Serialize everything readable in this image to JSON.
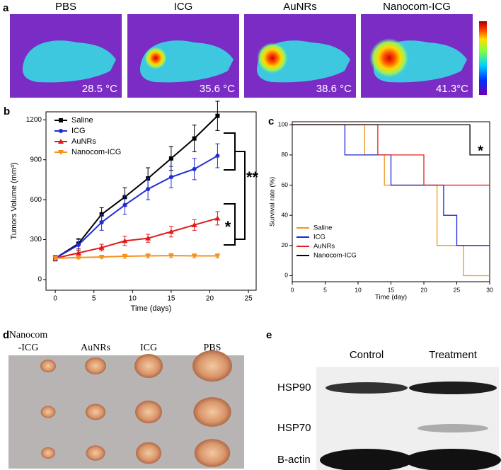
{
  "panel_a": {
    "label": "a",
    "images": [
      {
        "title": "PBS",
        "temperature": "28.5 °C"
      },
      {
        "title": "ICG",
        "temperature": "35.6 °C"
      },
      {
        "title": "AuNRs",
        "temperature": "38.6 °C"
      },
      {
        "title": "Nanocom-ICG",
        "temperature": "41.3°C"
      }
    ]
  },
  "chart_data": [
    {
      "type": "line",
      "panel_label": "b",
      "x_label": "Time (days)",
      "y_label": "Tumors Volume (mm³)",
      "x": [
        0,
        3,
        6,
        9,
        12,
        15,
        18,
        21
      ],
      "series": [
        {
          "name": "Saline",
          "color": "#000000",
          "marker": "square",
          "values": [
            160,
            270,
            490,
            620,
            760,
            910,
            1060,
            1230
          ],
          "errors": [
            20,
            40,
            50,
            70,
            80,
            90,
            100,
            110
          ]
        },
        {
          "name": "ICG",
          "color": "#1f2bd6",
          "marker": "circle",
          "values": [
            160,
            260,
            430,
            560,
            680,
            770,
            830,
            930
          ],
          "errors": [
            20,
            40,
            60,
            70,
            80,
            80,
            80,
            90
          ]
        },
        {
          "name": "AuNRs",
          "color": "#e01b1b",
          "marker": "triangle-up",
          "values": [
            160,
            200,
            240,
            290,
            310,
            360,
            410,
            460
          ],
          "errors": [
            15,
            20,
            25,
            35,
            30,
            40,
            40,
            50
          ]
        },
        {
          "name": "Nanocom-ICG",
          "color": "#f5921e",
          "marker": "triangle-down",
          "values": [
            160,
            165,
            170,
            175,
            178,
            180,
            178,
            178
          ],
          "errors": [
            10,
            10,
            10,
            15,
            15,
            15,
            15,
            15
          ]
        }
      ],
      "xlim": [
        -1.2,
        26
      ],
      "ylim": [
        -80,
        1260
      ],
      "xticks": [
        0,
        5,
        10,
        15,
        20,
        25
      ],
      "yticks": [
        0,
        300,
        600,
        900,
        1200
      ],
      "annotations": [
        "**",
        "*"
      ]
    },
    {
      "type": "step",
      "panel_label": "c",
      "x_label": "Time (day)",
      "y_label": "Survival rate (%)",
      "series": [
        {
          "name": "Saline",
          "color": "#f0961e",
          "x": [
            0,
            11,
            14,
            22,
            26,
            30
          ],
          "values": [
            100,
            80,
            60,
            20,
            0,
            0
          ]
        },
        {
          "name": "ICG",
          "color": "#1a26d6",
          "x": [
            0,
            8,
            15,
            23,
            25,
            30
          ],
          "values": [
            100,
            80,
            60,
            40,
            20,
            20
          ]
        },
        {
          "name": "AuNRs",
          "color": "#e6221e",
          "x": [
            0,
            13,
            20,
            30
          ],
          "values": [
            100,
            80,
            60,
            60
          ]
        },
        {
          "name": "Nanocom-ICG",
          "color": "#000000",
          "x": [
            0,
            27,
            30
          ],
          "values": [
            100,
            80,
            80
          ]
        }
      ],
      "xlim": [
        0,
        30
      ],
      "ylim": [
        -4,
        102
      ],
      "xticks": [
        0,
        5,
        10,
        15,
        20,
        25,
        30
      ],
      "yticks": [
        0,
        20,
        40,
        60,
        80,
        100
      ],
      "annotations": [
        "*"
      ]
    }
  ],
  "panel_d": {
    "label": "d",
    "columns": [
      "Nanocom",
      "-ICG",
      "AuNRs",
      "ICG",
      "PBS"
    ]
  },
  "panel_e": {
    "label": "e",
    "columns": [
      "Control",
      "Treatment"
    ],
    "rows": [
      "HSP90",
      "HSP70",
      "B-actin"
    ]
  }
}
